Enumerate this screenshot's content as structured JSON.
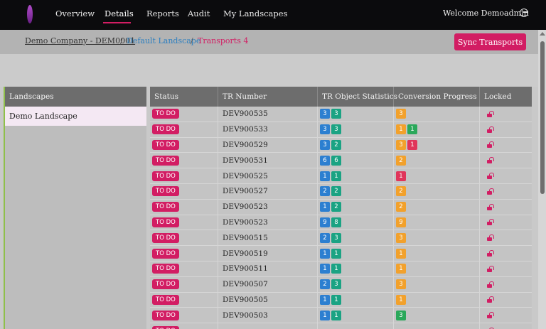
{
  "nav": {
    "items": [
      "Overview",
      "Details",
      "Reports",
      "Audit",
      "My Landscapes"
    ],
    "active": "Details",
    "welcome": "Welcome Demoadmin"
  },
  "breadcrumb": {
    "company": "Demo Company - DEM0001",
    "separator": "/",
    "landscape": "Default Landscape",
    "current": "Transports 4"
  },
  "sync_button": "Sync Transports",
  "landscapes": {
    "header": "Landscapes",
    "items": [
      "Demo Landscape"
    ]
  },
  "table": {
    "columns": [
      "Status",
      "TR Number",
      "TR Object Statistics",
      "Conversion Progress",
      "Locked"
    ],
    "rows": [
      {
        "status": "TO DO",
        "tr": "DEV900535",
        "stats": [
          {
            "v": "3",
            "c": "blue"
          },
          {
            "v": "3",
            "c": "teal"
          }
        ],
        "progress": [
          {
            "v": "3",
            "c": "orange"
          }
        ]
      },
      {
        "status": "TO DO",
        "tr": "DEV900533",
        "stats": [
          {
            "v": "3",
            "c": "blue"
          },
          {
            "v": "3",
            "c": "teal"
          }
        ],
        "progress": [
          {
            "v": "1",
            "c": "orange"
          },
          {
            "v": "1",
            "c": "green"
          }
        ]
      },
      {
        "status": "TO DO",
        "tr": "DEV900529",
        "stats": [
          {
            "v": "3",
            "c": "blue"
          },
          {
            "v": "2",
            "c": "teal"
          }
        ],
        "progress": [
          {
            "v": "3",
            "c": "orange"
          },
          {
            "v": "1",
            "c": "red"
          }
        ]
      },
      {
        "status": "TO DO",
        "tr": "DEV900531",
        "stats": [
          {
            "v": "6",
            "c": "blue"
          },
          {
            "v": "6",
            "c": "teal"
          }
        ],
        "progress": [
          {
            "v": "2",
            "c": "orange"
          }
        ]
      },
      {
        "status": "TO DO",
        "tr": "DEV900525",
        "stats": [
          {
            "v": "1",
            "c": "blue"
          },
          {
            "v": "1",
            "c": "teal"
          }
        ],
        "progress": [
          {
            "v": "1",
            "c": "red"
          }
        ]
      },
      {
        "status": "TO DO",
        "tr": "DEV900527",
        "stats": [
          {
            "v": "2",
            "c": "blue"
          },
          {
            "v": "2",
            "c": "teal"
          }
        ],
        "progress": [
          {
            "v": "2",
            "c": "orange"
          }
        ]
      },
      {
        "status": "TO DO",
        "tr": "DEV900523",
        "stats": [
          {
            "v": "1",
            "c": "blue"
          },
          {
            "v": "2",
            "c": "teal"
          }
        ],
        "progress": [
          {
            "v": "2",
            "c": "orange"
          }
        ]
      },
      {
        "status": "TO DO",
        "tr": "DEV900523",
        "stats": [
          {
            "v": "9",
            "c": "blue"
          },
          {
            "v": "8",
            "c": "teal"
          }
        ],
        "progress": [
          {
            "v": "9",
            "c": "orange"
          }
        ]
      },
      {
        "status": "TO DO",
        "tr": "DEV900515",
        "stats": [
          {
            "v": "2",
            "c": "blue"
          },
          {
            "v": "3",
            "c": "teal"
          }
        ],
        "progress": [
          {
            "v": "3",
            "c": "orange"
          }
        ]
      },
      {
        "status": "TO DO",
        "tr": "DEV900519",
        "stats": [
          {
            "v": "1",
            "c": "blue"
          },
          {
            "v": "1",
            "c": "teal"
          }
        ],
        "progress": [
          {
            "v": "1",
            "c": "orange"
          }
        ]
      },
      {
        "status": "TO DO",
        "tr": "DEV900511",
        "stats": [
          {
            "v": "1",
            "c": "blue"
          },
          {
            "v": "1",
            "c": "teal"
          }
        ],
        "progress": [
          {
            "v": "1",
            "c": "orange"
          }
        ]
      },
      {
        "status": "TO DO",
        "tr": "DEV900507",
        "stats": [
          {
            "v": "2",
            "c": "blue"
          },
          {
            "v": "3",
            "c": "teal"
          }
        ],
        "progress": [
          {
            "v": "3",
            "c": "orange"
          }
        ]
      },
      {
        "status": "TO DO",
        "tr": "DEV900505",
        "stats": [
          {
            "v": "1",
            "c": "blue"
          },
          {
            "v": "1",
            "c": "teal"
          }
        ],
        "progress": [
          {
            "v": "1",
            "c": "orange"
          }
        ]
      },
      {
        "status": "TO DO",
        "tr": "DEV900503",
        "stats": [
          {
            "v": "1",
            "c": "blue"
          },
          {
            "v": "1",
            "c": "teal"
          }
        ],
        "progress": [
          {
            "v": "3",
            "c": "green"
          }
        ]
      },
      {
        "status": "TO DO",
        "tr": "",
        "stats": [],
        "progress": []
      }
    ]
  },
  "colors": {
    "accent": "#d21d63",
    "nav_bg": "#0b0b0d",
    "badge_blue": "#2c7fd0",
    "badge_teal": "#1aa383",
    "badge_orange": "#f2a12c",
    "badge_red": "#e0355a",
    "badge_green": "#2aa85a"
  },
  "icons": [
    "brand-logo-icon",
    "logout-icon",
    "lock-icon"
  ]
}
